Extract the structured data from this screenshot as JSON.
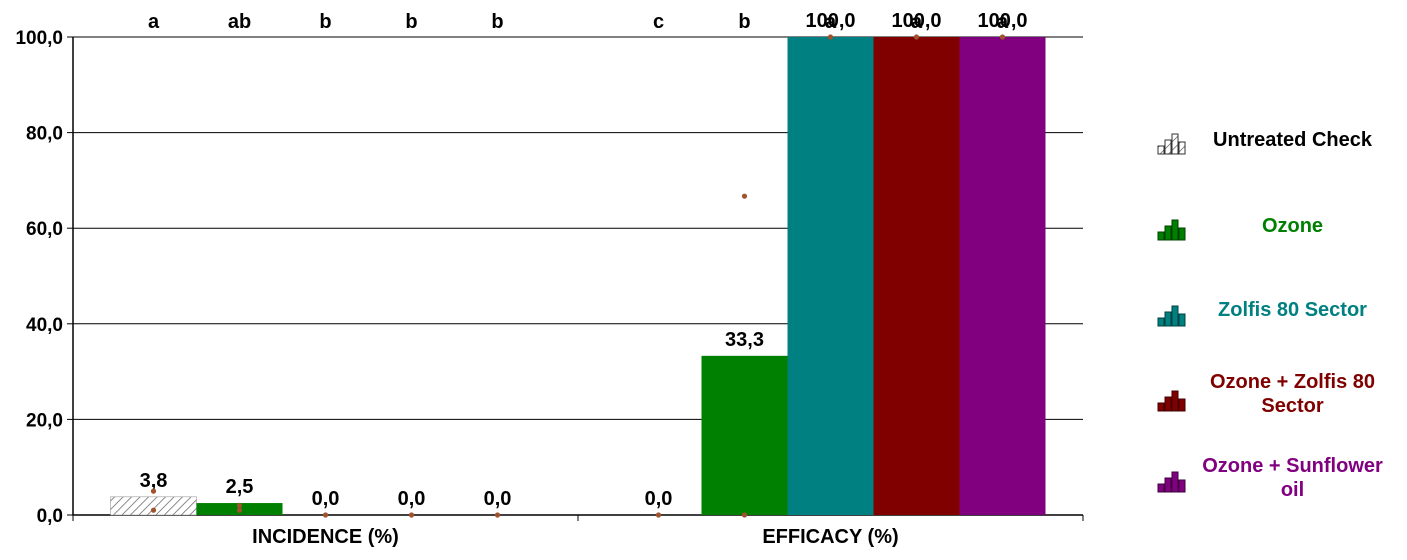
{
  "chart_data": {
    "type": "bar",
    "categories": [
      "INCIDENCE (%)",
      "EFFICACY (%)"
    ],
    "ylim": [
      0,
      100
    ],
    "yticks": [
      "0,0",
      "20,0",
      "40,0",
      "60,0",
      "80,0",
      "100,0"
    ],
    "grid": true,
    "legend_position": "right",
    "series": [
      {
        "name": "Untreated Check",
        "color": "#ffffff",
        "pattern": "hatch",
        "values": [
          3.8,
          0.0
        ],
        "value_labels": [
          "3,8",
          "0,0"
        ],
        "letters": [
          "a",
          "c"
        ]
      },
      {
        "name": "Ozone",
        "color": "#008000",
        "values": [
          2.5,
          33.3
        ],
        "value_labels": [
          "2,5",
          "33,3"
        ],
        "letters": [
          "ab",
          "b"
        ]
      },
      {
        "name": "Zolfis 80 Sector",
        "color": "#008080",
        "values": [
          0.0,
          100.0
        ],
        "value_labels": [
          "0,0",
          "100,0"
        ],
        "letters": [
          "b",
          "a"
        ]
      },
      {
        "name": "Ozone + Zolfis 80 Sector",
        "color": "#800000",
        "values": [
          0.0,
          100.0
        ],
        "value_labels": [
          "0,0",
          "100,0"
        ],
        "letters": [
          "b",
          "a"
        ]
      },
      {
        "name": "Ozone + Sunflower oil",
        "color": "#800080",
        "values": [
          0.0,
          100.0
        ],
        "value_labels": [
          "0,0",
          "100,0"
        ],
        "letters": [
          "b",
          "a"
        ]
      }
    ],
    "replicate_points": [
      [
        [
          5.0,
          1.0
        ],
        [
          0.0
        ]
      ],
      [
        [
          2.0,
          1.0
        ],
        [
          66.7,
          0.0
        ]
      ],
      [
        [
          0.0
        ],
        [
          100.0
        ]
      ],
      [
        [
          0.0
        ],
        [
          100.0
        ]
      ],
      [
        [
          0.0
        ],
        [
          100.0
        ]
      ]
    ],
    "point_color": "#a0522d"
  }
}
